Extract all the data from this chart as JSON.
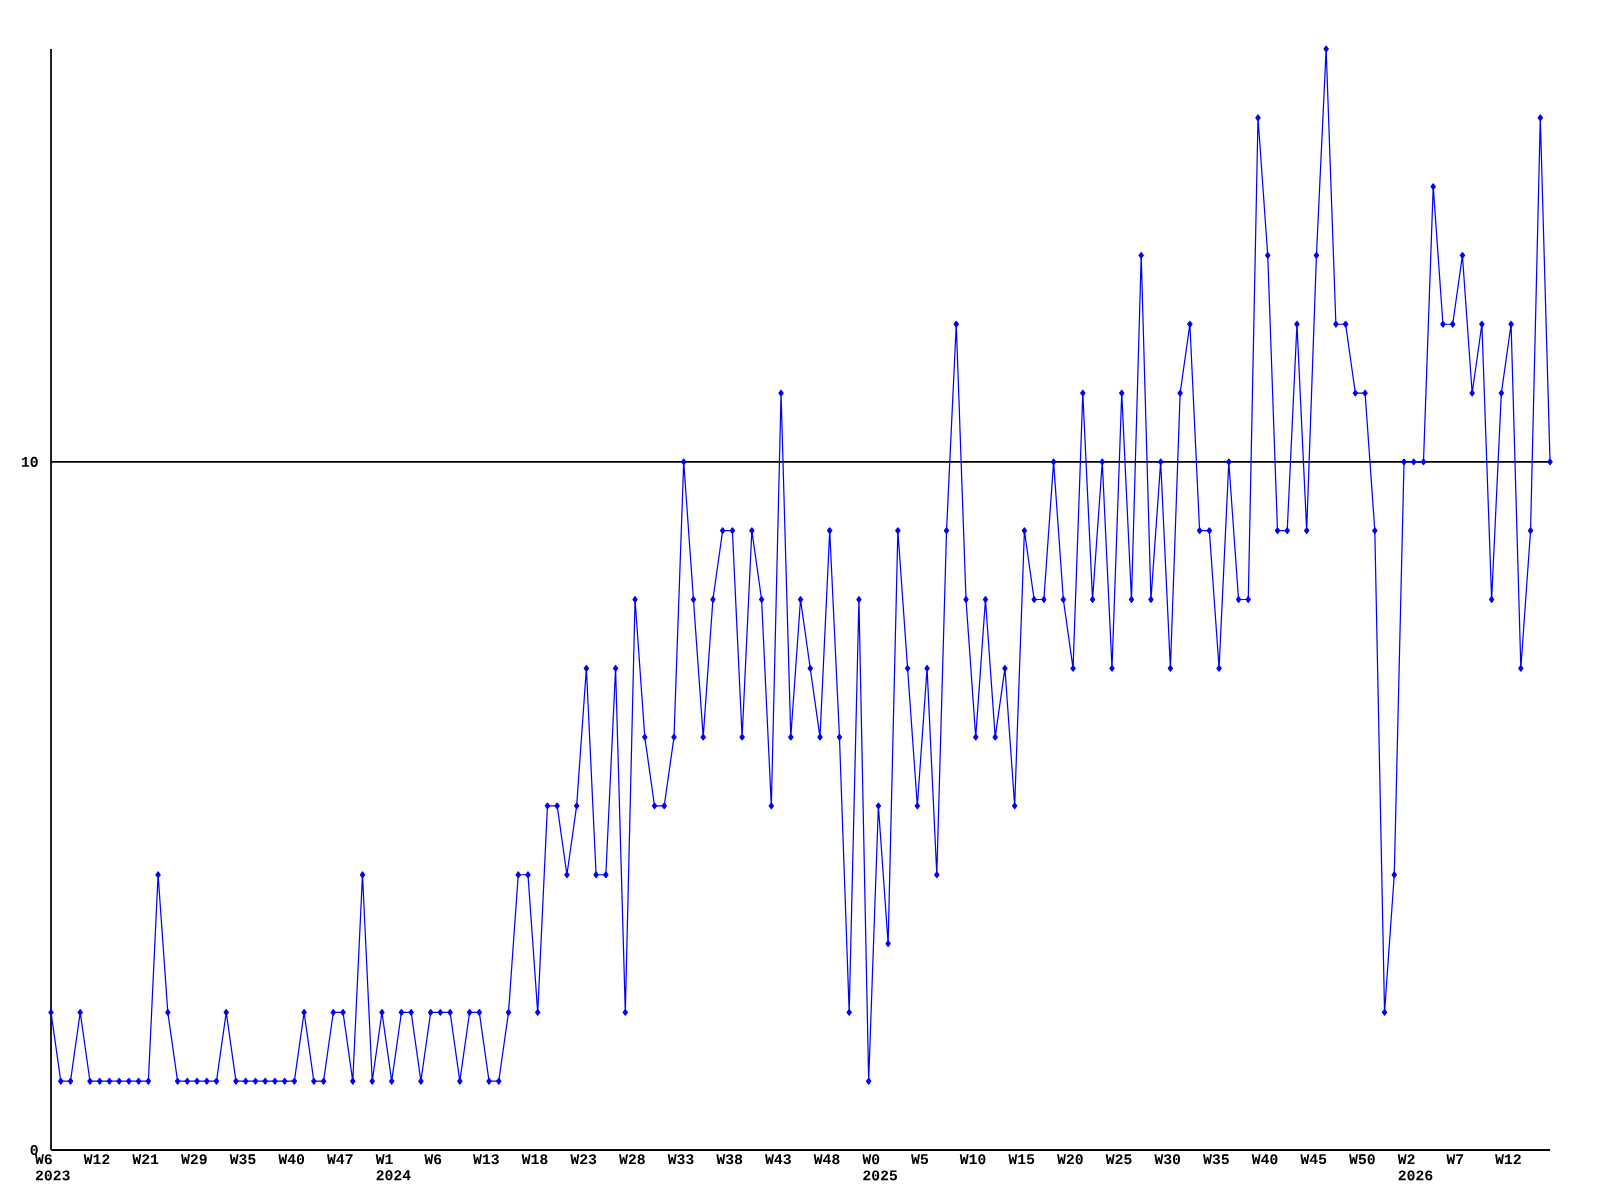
{
  "chart_data": {
    "type": "line",
    "categories": [
      "W6 2023",
      null,
      null,
      null,
      null,
      "W12",
      null,
      null,
      null,
      null,
      "W21",
      null,
      null,
      null,
      null,
      "W29",
      null,
      null,
      null,
      null,
      "W35",
      null,
      null,
      null,
      null,
      "W40",
      null,
      null,
      null,
      null,
      "W47",
      null,
      null,
      null,
      null,
      "W1 2024",
      null,
      null,
      null,
      null,
      "W6",
      null,
      null,
      null,
      null,
      "W13",
      null,
      null,
      null,
      null,
      "W18",
      null,
      null,
      null,
      null,
      "W23",
      null,
      null,
      null,
      null,
      "W28",
      null,
      null,
      null,
      null,
      "W33",
      null,
      null,
      null,
      null,
      "W38",
      null,
      null,
      null,
      null,
      "W43",
      null,
      null,
      null,
      null,
      "W48",
      null,
      null,
      null,
      null,
      "W0 2025",
      null,
      null,
      null,
      null,
      "W5",
      null,
      null,
      null,
      null,
      "W10",
      null,
      null,
      null,
      null,
      "W15",
      null,
      null,
      null,
      null,
      "W20",
      null,
      null,
      null,
      null,
      "W25",
      null,
      null,
      null,
      null,
      "W30",
      null,
      null,
      null,
      null,
      "W35",
      null,
      null,
      null,
      null,
      "W40",
      null,
      null,
      null,
      null,
      "W45",
      null,
      null,
      null,
      null,
      "W50",
      null,
      null,
      null,
      null,
      "W2 2026",
      null,
      null,
      null,
      null,
      "W7",
      null,
      null,
      null,
      null,
      "W12",
      null,
      null,
      null,
      null
    ],
    "values": [
      2,
      1,
      1,
      2,
      1,
      1,
      1,
      1,
      1,
      1,
      1,
      4,
      2,
      1,
      1,
      1,
      1,
      1,
      2,
      1,
      1,
      1,
      1,
      1,
      1,
      1,
      2,
      1,
      1,
      2,
      2,
      1,
      4,
      1,
      2,
      1,
      2,
      2,
      1,
      2,
      2,
      2,
      1,
      2,
      2,
      1,
      1,
      2,
      4,
      4,
      2,
      5,
      5,
      4,
      5,
      7,
      4,
      4,
      7,
      2,
      8,
      6,
      5,
      5,
      6,
      10,
      8,
      6,
      8,
      9,
      9,
      6,
      9,
      8,
      5,
      11,
      6,
      8,
      7,
      6,
      9,
      6,
      2,
      8,
      1,
      5,
      3,
      9,
      7,
      5,
      7,
      4,
      9,
      12,
      8,
      6,
      8,
      6,
      7,
      5,
      9,
      8,
      8,
      10,
      8,
      7,
      11,
      8,
      10,
      7,
      11,
      8,
      13,
      8,
      10,
      7,
      11,
      12,
      9,
      9,
      7,
      10,
      8,
      8,
      15,
      13,
      9,
      9,
      12,
      9,
      13,
      16,
      12,
      12,
      11,
      11,
      9,
      2,
      4,
      10,
      10,
      10,
      14,
      12,
      12,
      13,
      11,
      12,
      8,
      11,
      12,
      7,
      9,
      15,
      10
    ],
    "color": "#0000ff",
    "ylim": [
      0,
      16
    ],
    "yticks": [
      0,
      10
    ],
    "grid": "y",
    "marker": "diamond",
    "line_style": "solid"
  }
}
